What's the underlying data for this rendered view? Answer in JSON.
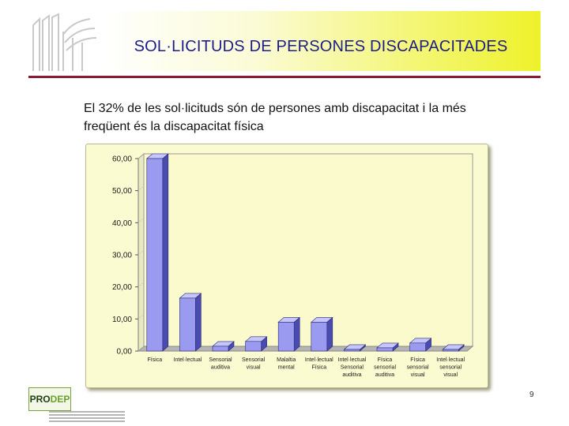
{
  "header": {
    "title": "SOL·LICITUDS DE PERSONES DISCAPACITADES"
  },
  "intro": {
    "line1": "El 32% de les sol·licituds són de persones amb discapacitat i la més",
    "line2": "freqüent és la discapacitat física"
  },
  "chart_data": {
    "type": "bar",
    "categories": [
      [
        "Física"
      ],
      [
        "Intel·lectual"
      ],
      [
        "Sensorial",
        "auditiva"
      ],
      [
        "Sensorial",
        "visual"
      ],
      [
        "Malaltia",
        "mental"
      ],
      [
        "Intel·lectual",
        "Física"
      ],
      [
        "Intel·lectual",
        "Sensorial",
        "auditiva"
      ],
      [
        "Física",
        "sensorial",
        "auditiva"
      ],
      [
        "Física",
        "sensorial",
        "visual"
      ],
      [
        "Intel·lectual",
        "sensorial",
        "visual"
      ]
    ],
    "values": [
      60,
      16.5,
      1.5,
      3,
      9,
      9,
      0.5,
      1,
      2.5,
      0.5
    ],
    "ylim": [
      0,
      60
    ],
    "yticks": [
      0,
      10,
      20,
      30,
      40,
      50,
      60
    ],
    "ytick_labels": [
      "0,00",
      "10,00",
      "20,00",
      "30,00",
      "40,00",
      "50,00",
      "60,00"
    ],
    "grid": false,
    "legend": "none",
    "colors": {
      "bar_front": "#9a9af0",
      "bar_side": "#4a4ab0",
      "bar_top": "#c6c6ff",
      "wall": "#fafacc",
      "floor": "#b4b4b4",
      "frame": "#fbfbd2"
    }
  },
  "footer": {
    "page_number": "9",
    "logo_a": "PRO",
    "logo_b": "DEP"
  }
}
